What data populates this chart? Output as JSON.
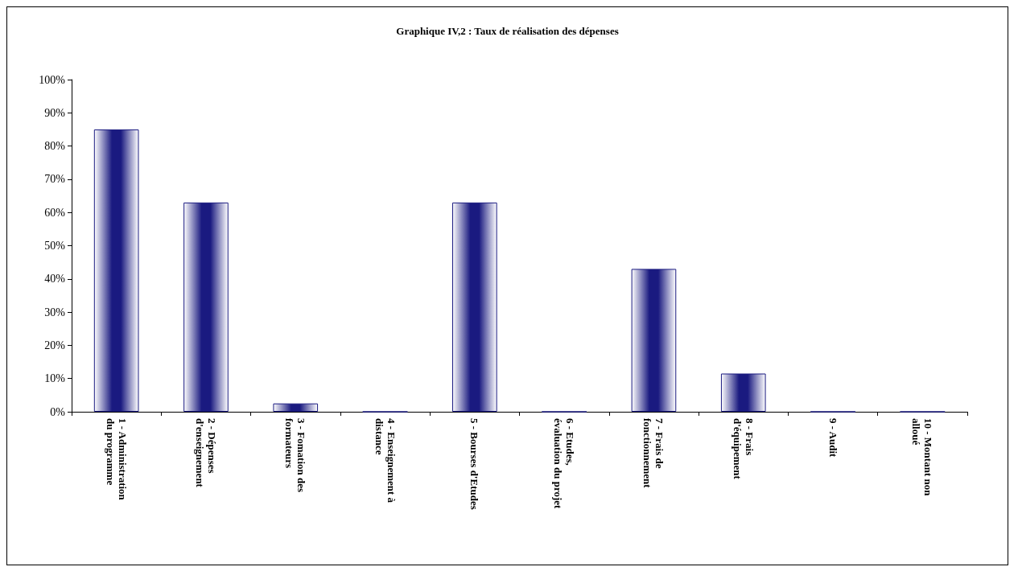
{
  "chart_data": {
    "type": "bar",
    "title": "Graphique IV,2 : Taux de réalisation des dépenses",
    "categories": [
      "1 - Administration du programme",
      "2 - Dépenses d'enseignement",
      "3 - Fomation des formateurs",
      "4 - Enseignement à distance",
      "5 - Bourses d'Etudes",
      "6 - Etudes, évaluation du projet",
      "7 - Frais de fonctionnement",
      "8 - Frais d'équipement",
      "9 - Audit",
      "10 - Montant non alloué"
    ],
    "values": [
      85,
      63,
      2.5,
      0,
      63,
      0,
      43,
      11.5,
      0,
      0
    ],
    "color": "#1a1a80",
    "ylim": [
      0,
      100
    ],
    "yticks": [
      {
        "value": 0,
        "label": "0%"
      },
      {
        "value": 10,
        "label": "10%"
      },
      {
        "value": 20,
        "label": "20%"
      },
      {
        "value": 30,
        "label": "30%"
      },
      {
        "value": 40,
        "label": "40%"
      },
      {
        "value": 50,
        "label": "50%"
      },
      {
        "value": 60,
        "label": "60%"
      },
      {
        "value": 70,
        "label": "70%"
      },
      {
        "value": 80,
        "label": "80%"
      },
      {
        "value": 90,
        "label": "90%"
      },
      {
        "value": 100,
        "label": "100%"
      }
    ],
    "grid": false
  }
}
